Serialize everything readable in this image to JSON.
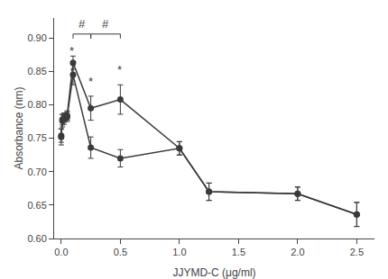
{
  "chart_data": {
    "type": "line",
    "xlabel": "JJYMD-C (μg/ml)",
    "ylabel": "Absorbance (nm)",
    "x": [
      0.0,
      0.01,
      0.025,
      0.05,
      0.1,
      0.25,
      0.5,
      1.0,
      1.25,
      2.0,
      2.5
    ],
    "series": [
      {
        "color": "#3a3a3a",
        "marker": "circle",
        "values": [
          0.752,
          0.776,
          0.779,
          0.782,
          0.845,
          0.736,
          0.72,
          0.735,
          0.67,
          0.667,
          0.636
        ],
        "yerr": [
          0.012,
          0.009,
          0.008,
          0.007,
          0.015,
          0.016,
          0.013,
          0.01,
          0.013,
          0.01,
          0.018
        ]
      },
      {
        "color": "#3a3a3a",
        "marker": "circle",
        "values": [
          0.754,
          0.778,
          0.781,
          0.784,
          0.863,
          0.795,
          0.808,
          0.735,
          0.67,
          0.667,
          0.636
        ],
        "yerr": [
          0.01,
          0.008,
          0.007,
          0.007,
          0.01,
          0.018,
          0.022,
          0.01,
          0.013,
          0.01,
          0.018
        ]
      }
    ],
    "xlim": [
      -0.06,
      2.65
    ],
    "ylim": [
      0.6,
      0.93
    ],
    "xticks": [
      {
        "value": 0.0,
        "label": "0.0"
      },
      0.5,
      {
        "value": 1.0,
        "label": "1.0"
      },
      1.5,
      {
        "value": 2.0,
        "label": "2.0"
      },
      2.5
    ],
    "yticks": [
      {
        "value": 0.6,
        "label": "0.60"
      },
      0.65,
      {
        "value": 0.7,
        "label": "0.70"
      },
      0.75,
      {
        "value": 0.8,
        "label": "0.80"
      },
      0.85,
      {
        "value": 0.9,
        "label": "0.90"
      }
    ],
    "annotations": [
      {
        "text": "*",
        "x": 0.09,
        "y": 0.868
      },
      {
        "text": "*",
        "x": 0.25,
        "y": 0.822
      },
      {
        "text": "*",
        "x": 0.49,
        "y": 0.84
      },
      {
        "text": "#",
        "x": 0.175,
        "y": 0.908
      },
      {
        "text": "#",
        "x": 0.375,
        "y": 0.908
      }
    ],
    "brackets": [
      {
        "x": [
          0.1,
          0.25
        ],
        "y": 0.906
      },
      {
        "x": [
          0.25,
          0.5
        ],
        "y": 0.906
      }
    ],
    "grid": false
  }
}
